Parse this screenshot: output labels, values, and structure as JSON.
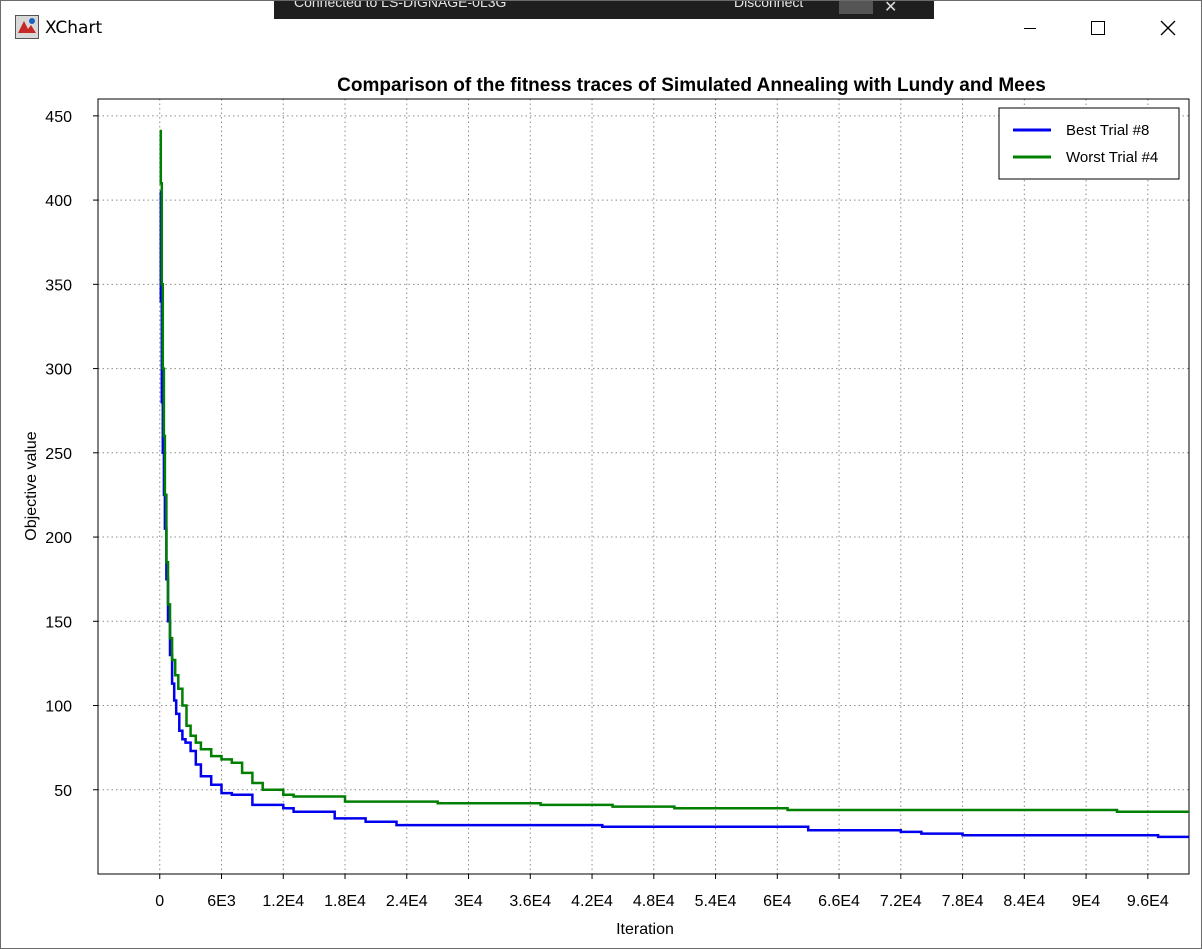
{
  "window": {
    "title": "XChart",
    "rdp_connection": "Connected to LS-DIGNAGE-0L3G",
    "rdp_disconnect": "Disconnect"
  },
  "colors": {
    "best": "#0000ee",
    "worst": "#007f00",
    "grid": "#8c8c8c"
  },
  "chart_data": {
    "type": "line",
    "title": "Comparison of the fitness traces of Simulated Annealing with Lundy and Mees",
    "xlabel": "Iteration",
    "ylabel": "Objective value",
    "xlim": [
      -6000,
      100000
    ],
    "ylim": [
      0,
      460
    ],
    "x_ticks": [
      0,
      6000,
      12000,
      18000,
      24000,
      30000,
      36000,
      42000,
      48000,
      54000,
      60000,
      66000,
      72000,
      78000,
      84000,
      90000,
      96000
    ],
    "x_tick_labels": [
      "0",
      "6E3",
      "1.2E4",
      "1.8E4",
      "2.4E4",
      "3E4",
      "3.6E4",
      "4.2E4",
      "4.8E4",
      "5.4E4",
      "6E4",
      "6.6E4",
      "7.2E4",
      "7.8E4",
      "8.4E4",
      "9E4",
      "9.6E4"
    ],
    "y_ticks": [
      50,
      100,
      150,
      200,
      250,
      300,
      350,
      400,
      450
    ],
    "y_tick_labels": [
      "50",
      "100",
      "150",
      "200",
      "250",
      "300",
      "350",
      "400",
      "450"
    ],
    "grid": true,
    "legend_position": "top-right",
    "series": [
      {
        "name": "Best Trial #8",
        "x": [
          0,
          100,
          200,
          300,
          400,
          500,
          650,
          800,
          1000,
          1200,
          1400,
          1600,
          1900,
          2200,
          2500,
          3000,
          3500,
          4000,
          5000,
          6000,
          7000,
          9000,
          12000,
          13000,
          17000,
          20000,
          23000,
          43000,
          60000,
          63000,
          72000,
          74000,
          78000,
          82000,
          97000,
          100000
        ],
        "y": [
          405,
          340,
          280,
          250,
          225,
          205,
          175,
          150,
          130,
          113,
          103,
          95,
          85,
          80,
          78,
          73,
          65,
          58,
          53,
          48,
          47,
          41,
          39,
          37,
          33,
          31,
          29,
          28,
          28,
          26,
          25,
          24,
          23,
          23,
          22,
          22
        ]
      },
      {
        "name": "Worst Trial #4",
        "x": [
          0,
          100,
          200,
          300,
          400,
          500,
          650,
          800,
          1000,
          1200,
          1500,
          1800,
          2200,
          2600,
          3000,
          3500,
          4000,
          5000,
          6000,
          7000,
          8000,
          9000,
          10000,
          12000,
          13000,
          18000,
          27000,
          37000,
          44000,
          50000,
          61000,
          93000,
          100000
        ],
        "y": [
          441,
          410,
          350,
          300,
          260,
          225,
          185,
          160,
          140,
          127,
          118,
          110,
          100,
          88,
          82,
          78,
          74,
          70,
          68,
          66,
          60,
          54,
          50,
          47,
          46,
          43,
          42,
          41,
          40,
          39,
          38,
          37,
          37
        ]
      }
    ]
  }
}
